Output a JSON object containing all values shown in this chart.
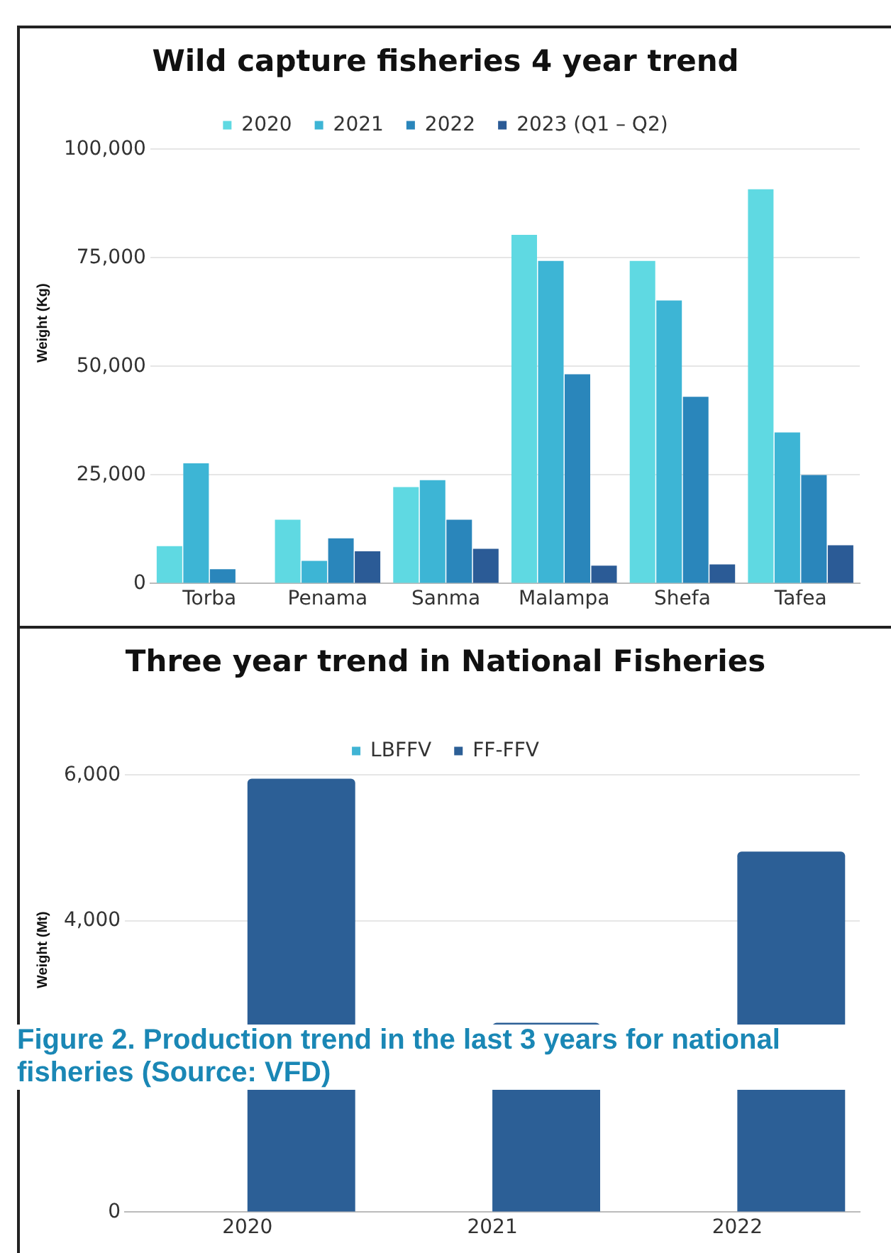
{
  "chart_data": [
    {
      "type": "bar",
      "title": "Wild capture fisheries 4 year trend",
      "ylabel": "Weight (Kg)",
      "categories": [
        "Torba",
        "Penama",
        "Sanma",
        "Malampa",
        "Shefa",
        "Tafea"
      ],
      "series": [
        {
          "name": "2020",
          "color": "#5fd9e2",
          "values": [
            8600,
            14700,
            22200,
            80300,
            74300,
            90800
          ]
        },
        {
          "name": "2021",
          "color": "#3db5d5",
          "values": [
            27700,
            5200,
            23800,
            74300,
            65200,
            34800
          ]
        },
        {
          "name": "2022",
          "color": "#2a86bb",
          "values": [
            3300,
            10400,
            14700,
            48200,
            43000,
            25000
          ]
        },
        {
          "name": "2023 (Q1 – Q2)",
          "color": "#2b5b96",
          "values": [
            0,
            7400,
            8000,
            4100,
            4400,
            8800
          ]
        }
      ],
      "ylim": [
        0,
        100000
      ],
      "yticks": [
        0,
        {
          "value": 25000,
          "label": "25,000"
        },
        {
          "value": 50000,
          "label": "50,000"
        },
        {
          "value": 75000,
          "label": "75,000"
        },
        {
          "value": 100000,
          "label": "100,000"
        }
      ],
      "grid": "y",
      "legend": "top"
    },
    {
      "type": "bar",
      "title": "Three year trend in National Fisheries",
      "ylabel": "Weight (Mt)",
      "categories": [
        "2020",
        "2021",
        "2022"
      ],
      "series": [
        {
          "name": "LBFFV",
          "color": "#40b4d4",
          "values": [
            null,
            null,
            null
          ]
        },
        {
          "name": "FF-FFV",
          "color": "#2c5f96",
          "values": [
            5950,
            2600,
            4950
          ]
        }
      ],
      "ylim": [
        0,
        6000
      ],
      "yticks": [
        0,
        {
          "value": 4000,
          "label": "4,000"
        },
        {
          "value": 6000,
          "label": "6,000"
        }
      ],
      "grid": "y",
      "legend": "top",
      "annotations": [
        "Figure 2. Production trend in the last 3 years for national fisheries (Source: VFD)"
      ]
    }
  ]
}
